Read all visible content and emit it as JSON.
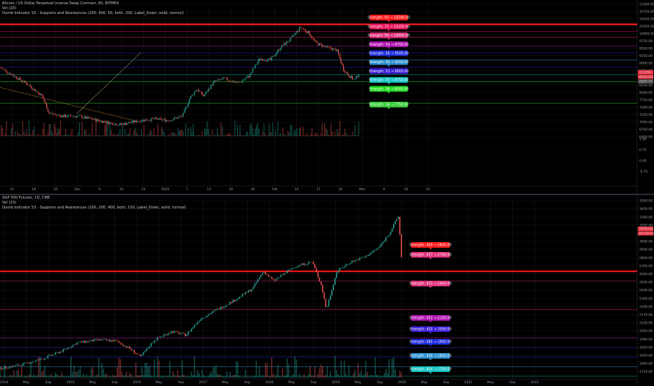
{
  "colors": {
    "background": "#000000",
    "up": "#26a69a",
    "down": "#ef5350",
    "grid": "#1a1a1a",
    "axis_text": "#9aa0a6"
  },
  "chart_data": [
    {
      "type": "candlestick",
      "title": "Bitcoin / US Dollar Perpetual Inverse Swap Contract, 60, BITMEX",
      "legend": [
        "Vol (20)",
        "Dumb Indicator 53 - Supports and Resistances (250, 400, 50, both, 200, Label_Down, solid, normal)"
      ],
      "x_ticks": [
        "11",
        "18",
        "25",
        "Dec",
        "9",
        "16",
        "23",
        "2020",
        "7",
        "13",
        "20",
        "26",
        "Feb",
        "10",
        "17",
        "24",
        "Mar",
        "9",
        "16",
        "23"
      ],
      "y_ticks": [
        "11000.00",
        "10750.00",
        "10500.00",
        "10250.00",
        "10000.00",
        "9750.00",
        "9500.00",
        "9250.00",
        "9000.00",
        "8750.00",
        "8500.00",
        "8250.00",
        "8000.00",
        "7750.00",
        "7500.00",
        "7250.00",
        "7000.00",
        "6750.00",
        "6500.00"
      ],
      "indicator_ticks": [
        "1.50",
        "0.75",
        "0.00",
        "-0.75"
      ],
      "ylim": [
        6700,
        11200
      ],
      "price_flags": [
        {
          "text": "-5.29%",
          "color": "#f23645"
        },
        {
          "text": "8830.50",
          "color": "#f23645"
        },
        {
          "text": "8800.00",
          "color": "#4a4a4a"
        }
      ],
      "close_path": [
        [
          0,
          9000
        ],
        [
          20,
          8700
        ],
        [
          40,
          8400
        ],
        [
          60,
          8000
        ],
        [
          70,
          7400
        ],
        [
          90,
          7300
        ],
        [
          110,
          7300
        ],
        [
          140,
          7150
        ],
        [
          170,
          7000
        ],
        [
          200,
          7150
        ],
        [
          220,
          7200
        ],
        [
          240,
          7150
        ],
        [
          260,
          7300
        ],
        [
          270,
          7900
        ],
        [
          280,
          8250
        ],
        [
          290,
          8000
        ],
        [
          305,
          8500
        ],
        [
          320,
          8600
        ],
        [
          340,
          8450
        ],
        [
          355,
          8700
        ],
        [
          370,
          9300
        ],
        [
          385,
          9250
        ],
        [
          400,
          9700
        ],
        [
          415,
          10000
        ],
        [
          428,
          10400
        ],
        [
          440,
          10200
        ],
        [
          450,
          9850
        ],
        [
          465,
          9700
        ],
        [
          480,
          9600
        ],
        [
          490,
          8900
        ],
        [
          498,
          8700
        ],
        [
          505,
          8550
        ],
        [
          512,
          8800
        ]
      ],
      "levels": [
        {
          "label": "Strength: 93 → 10500.00",
          "value": 10500,
          "color": "#ff1a1a",
          "thick": true
        },
        {
          "label": "Strength: 75 → 10250.00",
          "value": 10250,
          "color": "#e8155a"
        },
        {
          "label": "Strength: 56 → 10050.00",
          "value": 10050,
          "color": "#e0307a"
        },
        {
          "label": "Strength: 54 → 9750.00",
          "value": 9750,
          "color": "#b013b0"
        },
        {
          "label": "Strength: 56 → 9500.00",
          "value": 9500,
          "color": "#1e2cdc"
        },
        {
          "label": "Strength: 50 → 9250.00",
          "value": 9250,
          "color": "#2a8fd0"
        },
        {
          "label": "Strength: 53 → 9000.00",
          "value": 9000,
          "color": "#3a1fd6"
        },
        {
          "label": "Strength: 53 → 8750.00",
          "value": 8750,
          "color": "#15c2c2"
        },
        {
          "label": "Strength: 56 → 8500.00",
          "value": 8500,
          "color": "#22dd22"
        },
        {
          "label": "Strength: 56 → 7750.00",
          "value": 7750,
          "color": "#33cc33"
        }
      ],
      "trendlines": [
        {
          "from": [
            0,
            8300
          ],
          "to": [
            190,
            7150
          ],
          "color": "#d8a030"
        },
        {
          "from": [
            110,
            7400
          ],
          "to": [
            200,
            9500
          ],
          "color": "#d8d8a0"
        }
      ]
    },
    {
      "type": "candlestick",
      "title": "S&P 500 Futures, 1D, CME",
      "legend": [
        "Vol (20)",
        "Dumb Indicator 53 - Supports and Resistances (100, 200, 400, both, 150, Label_Down, solid, normal)"
      ],
      "x_ticks": [
        "2014",
        "May",
        "Sep",
        "2015",
        "May",
        "Sep",
        "2016",
        "May",
        "Sep",
        "2017",
        "May",
        "Sep",
        "2018",
        "May",
        "Sep",
        "2019",
        "May",
        "Sep",
        "2020",
        "May",
        "Sep",
        "2021",
        "May",
        "Sep",
        "2022"
      ],
      "y_ticks": [
        "3500.00",
        "3400.00",
        "3300.00",
        "3200.00",
        "3100.00",
        "3000.00",
        "2900.00",
        "2800.00",
        "2700.00",
        "2640.00",
        "2500.00",
        "2400.00",
        "2300.00",
        "2200.00",
        "2170.00",
        "2100.00",
        "2050.00",
        "1990.00",
        "1920.00",
        "1850.00",
        "1800.00",
        "1720.00"
      ],
      "ylim": [
        1700,
        3540
      ],
      "price_flags": [
        {
          "text": "2950.00",
          "color": "#f23645"
        },
        {
          "text": "81:09:23",
          "color": "#f23645"
        }
      ],
      "close_path": [
        [
          0,
          1780
        ],
        [
          30,
          1820
        ],
        [
          60,
          1880
        ],
        [
          90,
          1970
        ],
        [
          110,
          2050
        ],
        [
          140,
          2080
        ],
        [
          165,
          2070
        ],
        [
          185,
          1990
        ],
        [
          200,
          1900
        ],
        [
          220,
          2080
        ],
        [
          245,
          2170
        ],
        [
          265,
          2130
        ],
        [
          285,
          2300
        ],
        [
          310,
          2400
        ],
        [
          335,
          2500
        ],
        [
          360,
          2620
        ],
        [
          375,
          2800
        ],
        [
          390,
          2700
        ],
        [
          420,
          2850
        ],
        [
          445,
          2900
        ],
        [
          458,
          2650
        ],
        [
          465,
          2400
        ],
        [
          480,
          2800
        ],
        [
          500,
          2900
        ],
        [
          520,
          2950
        ],
        [
          540,
          3050
        ],
        [
          555,
          3200
        ],
        [
          568,
          3380
        ],
        [
          572,
          2950
        ]
      ],
      "levels": [
        {
          "label": "Strength: 450 → 2800.00",
          "value": 2800,
          "color": "#ff1a1a",
          "thick": true
        },
        {
          "label": "Strength: 457 → 2700.00",
          "value": 2700,
          "color": "#e0307a"
        },
        {
          "label": "Strength: 453 → 2400.00",
          "value": 2400,
          "color": "#e0307a"
        },
        {
          "label": "Strength: 452 → 2100.00",
          "value": 2100,
          "color": "#b013b0"
        },
        {
          "label": "Strength: 455 → 2000.00",
          "value": 2000,
          "color": "#3a1fd6"
        },
        {
          "label": "Strength: 495 → 1900.00",
          "value": 1900,
          "color": "#1e2cdc"
        },
        {
          "label": "Strength: 434 → 1800.00",
          "value": 1800,
          "color": "#2a8fd0"
        },
        {
          "label": "Strength: 454 → 1700.00",
          "value": 1700,
          "color": "#15c2c2"
        }
      ]
    }
  ]
}
